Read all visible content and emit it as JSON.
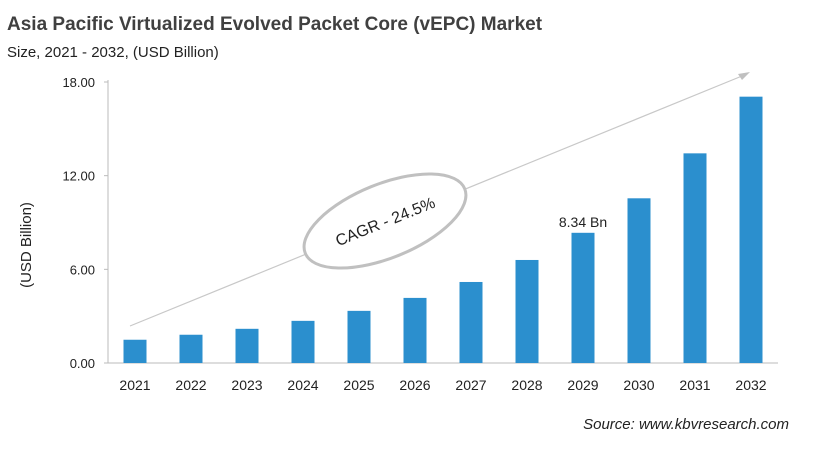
{
  "chart_data": {
    "type": "bar",
    "title": "Asia Pacific Virtualized Evolved Packet Core (vEPC) Market",
    "subtitle": "Size, 2021 - 2032, (USD Billion)",
    "ylabel": "(USD Billion)",
    "xlabel": "",
    "categories": [
      "2021",
      "2022",
      "2023",
      "2024",
      "2025",
      "2026",
      "2027",
      "2028",
      "2029",
      "2030",
      "2031",
      "2032"
    ],
    "values": [
      1.49,
      1.81,
      2.19,
      2.7,
      3.34,
      4.17,
      5.19,
      6.6,
      8.34,
      10.55,
      13.43,
      17.06
    ],
    "ylim": [
      0,
      18
    ],
    "yticks": [
      "0.00",
      "6.00",
      "12.00",
      "18.00"
    ],
    "ytick_values": [
      0,
      6,
      12,
      18
    ],
    "grid": false,
    "bar_color": "#2b8fce",
    "annotations": {
      "data_label": "8.34 Bn",
      "data_label_category": "2029",
      "cagr": "CAGR - 24.5%"
    },
    "source": "Source: www.kbvresearch.com"
  }
}
